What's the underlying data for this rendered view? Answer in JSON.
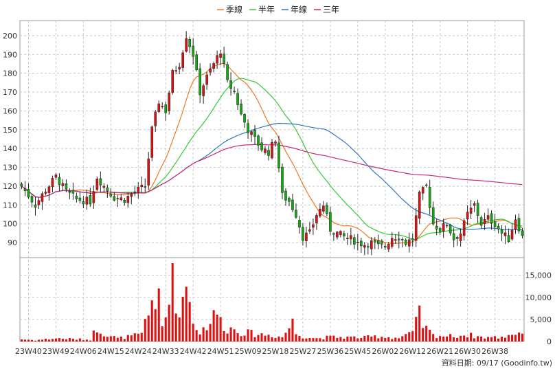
{
  "chart_data": {
    "type": "candlestick",
    "legend": [
      {
        "name": "季線",
        "color": "#f07820"
      },
      {
        "name": "半年",
        "color": "#33cc33"
      },
      {
        "name": "年線",
        "color": "#2a78c8"
      },
      {
        "name": "三年",
        "color": "#c8287a"
      }
    ],
    "price_axis": {
      "ylim": [
        82,
        208
      ],
      "ticks": [
        90,
        100,
        110,
        120,
        130,
        140,
        150,
        160,
        170,
        180,
        190,
        200
      ]
    },
    "volume_axis": {
      "ylim": [
        0,
        19000
      ],
      "ticks": [
        0,
        5000,
        10000,
        15000
      ],
      "tick_labels": [
        "0",
        "5,000",
        "10,000",
        "15,000"
      ]
    },
    "x_labels": [
      "23W40",
      "23W49",
      "24W06",
      "24W15",
      "24W24",
      "24W33",
      "24W42",
      "24W51",
      "25W09",
      "25W18",
      "25W27",
      "25W36",
      "25W45",
      "26W02",
      "26W12",
      "26W21",
      "26W30",
      "26W38"
    ],
    "close_anchors": [
      [
        0,
        120
      ],
      [
        2,
        115
      ],
      [
        4,
        110
      ],
      [
        7,
        118
      ],
      [
        10,
        125
      ],
      [
        13,
        117
      ],
      [
        16,
        113
      ],
      [
        20,
        112
      ],
      [
        22,
        125
      ],
      [
        24,
        120
      ],
      [
        27,
        114
      ],
      [
        30,
        113
      ],
      [
        33,
        117
      ],
      [
        36,
        120
      ],
      [
        38,
        150
      ],
      [
        40,
        165
      ],
      [
        42,
        160
      ],
      [
        44,
        180
      ],
      [
        46,
        185
      ],
      [
        48,
        200
      ],
      [
        50,
        190
      ],
      [
        52,
        170
      ],
      [
        54,
        178
      ],
      [
        56,
        185
      ],
      [
        58,
        192
      ],
      [
        60,
        175
      ],
      [
        62,
        170
      ],
      [
        64,
        158
      ],
      [
        66,
        150
      ],
      [
        68,
        145
      ],
      [
        70,
        140
      ],
      [
        72,
        138
      ],
      [
        74,
        145
      ],
      [
        76,
        115
      ],
      [
        78,
        112
      ],
      [
        80,
        105
      ],
      [
        82,
        93
      ],
      [
        84,
        95
      ],
      [
        86,
        105
      ],
      [
        88,
        110
      ],
      [
        90,
        97
      ],
      [
        92,
        95
      ],
      [
        94,
        93
      ],
      [
        96,
        92
      ],
      [
        98,
        90
      ],
      [
        100,
        89
      ],
      [
        102,
        90
      ],
      [
        104,
        88
      ],
      [
        106,
        88
      ],
      [
        108,
        93
      ],
      [
        110,
        93
      ],
      [
        112,
        90
      ],
      [
        114,
        92
      ],
      [
        116,
        115
      ],
      [
        118,
        120
      ],
      [
        120,
        100
      ],
      [
        122,
        97
      ],
      [
        124,
        100
      ],
      [
        126,
        92
      ],
      [
        128,
        95
      ],
      [
        130,
        105
      ],
      [
        132,
        110
      ],
      [
        134,
        100
      ],
      [
        136,
        103
      ],
      [
        138,
        100
      ],
      [
        140,
        95
      ],
      [
        142,
        92
      ],
      [
        144,
        103
      ],
      [
        146,
        93
      ]
    ],
    "volume_anchors": [
      [
        0,
        500
      ],
      [
        4,
        300
      ],
      [
        10,
        700
      ],
      [
        20,
        400
      ],
      [
        22,
        3300
      ],
      [
        24,
        1900
      ],
      [
        28,
        700
      ],
      [
        32,
        1200
      ],
      [
        35,
        1500
      ],
      [
        36,
        4500
      ],
      [
        37,
        6200
      ],
      [
        38,
        9600
      ],
      [
        39,
        10400
      ],
      [
        40,
        8500
      ],
      [
        41,
        3000
      ],
      [
        42,
        5000
      ],
      [
        43,
        9000
      ],
      [
        44,
        18000
      ],
      [
        45,
        11000
      ],
      [
        46,
        4000
      ],
      [
        47,
        17500
      ],
      [
        48,
        12000
      ],
      [
        49,
        9000
      ],
      [
        50,
        4500
      ],
      [
        51,
        3500
      ],
      [
        52,
        2000
      ],
      [
        54,
        3800
      ],
      [
        56,
        5500
      ],
      [
        57,
        6800
      ],
      [
        58,
        4500
      ],
      [
        60,
        3000
      ],
      [
        62,
        2800
      ],
      [
        64,
        2200
      ],
      [
        68,
        1700
      ],
      [
        72,
        1500
      ],
      [
        76,
        1000
      ],
      [
        78,
        3200
      ],
      [
        79,
        4300
      ],
      [
        80,
        1800
      ],
      [
        82,
        1200
      ],
      [
        86,
        700
      ],
      [
        90,
        1000
      ],
      [
        100,
        900
      ],
      [
        104,
        1200
      ],
      [
        108,
        900
      ],
      [
        110,
        800
      ],
      [
        112,
        1500
      ],
      [
        114,
        1700
      ],
      [
        115,
        4700
      ],
      [
        116,
        5700
      ],
      [
        117,
        3800
      ],
      [
        118,
        2800
      ],
      [
        120,
        1400
      ],
      [
        125,
        1200
      ],
      [
        130,
        1500
      ],
      [
        134,
        1000
      ],
      [
        140,
        900
      ],
      [
        143,
        1800
      ],
      [
        146,
        2000
      ]
    ]
  },
  "footer": {
    "text": "資料日期: 09/17  (Goodinfo.tw)"
  }
}
